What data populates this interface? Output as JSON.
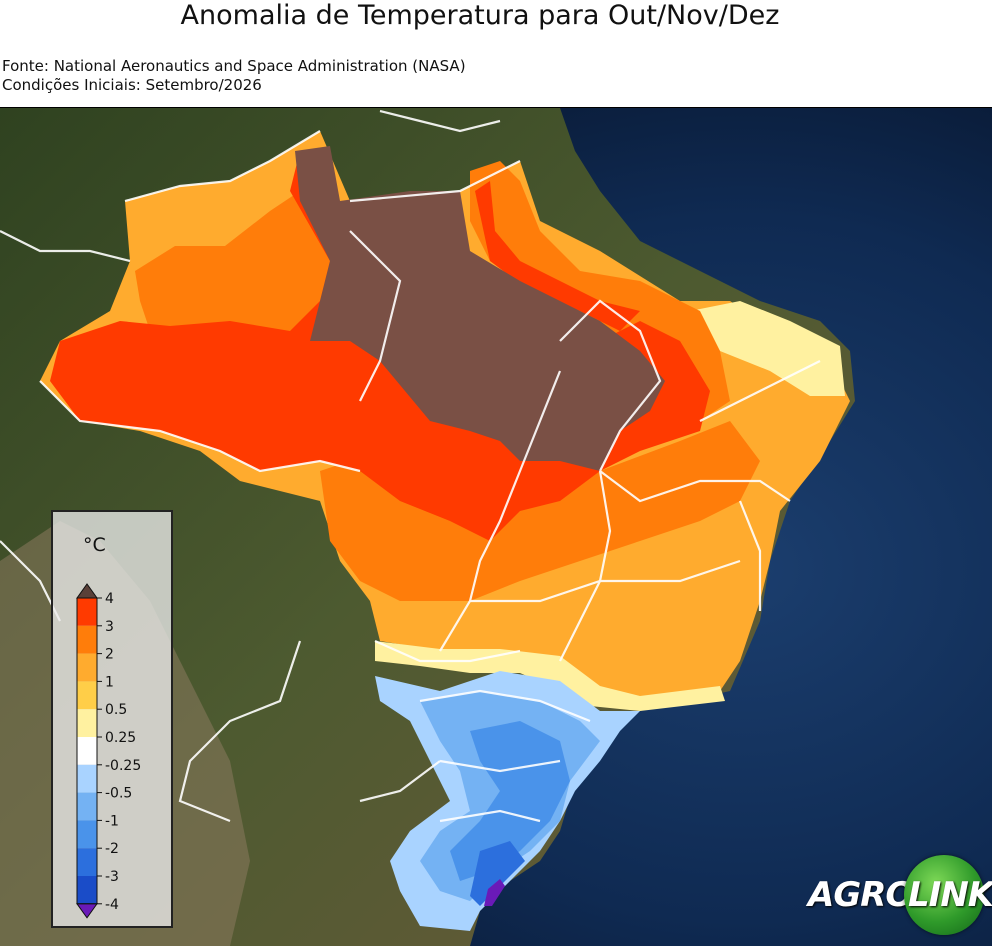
{
  "header": {
    "title": "Anomalia de Temperatura para Out/Nov/Dez",
    "source_line": "Fonte: National Aeronautics and Space Administration (NASA)",
    "conditions_line": "Condições Iniciais: Setembro/2026"
  },
  "legend": {
    "unit": "°C",
    "bins": [
      {
        "label": "4",
        "color": "#7a5045"
      },
      {
        "label": "3",
        "color": "#ff3a00"
      },
      {
        "label": "2",
        "color": "#ff7d0a"
      },
      {
        "label": "1",
        "color": "#ffab2e"
      },
      {
        "label": "0.5",
        "color": "#ffce48"
      },
      {
        "label": "0.25",
        "color": "#fff6a6"
      },
      {
        "label": "-0.25",
        "color": "#ffffff"
      },
      {
        "label": "-0.5",
        "color": "#a9d3ff"
      },
      {
        "label": "-1",
        "color": "#74b2f3"
      },
      {
        "label": "-2",
        "color": "#4a93ea"
      },
      {
        "label": "-3",
        "color": "#2c6fdd"
      },
      {
        "label": "-4",
        "color": "#1a4cc8"
      }
    ],
    "under_color": "#6a1ab8",
    "over_color": "#5a4038"
  },
  "logo": {
    "left_text": "AGRO",
    "right_text": "LINK"
  },
  "colors": {
    "ocean": "#0b1f3c",
    "land": "#4a5a2c",
    "border": "#ffffff"
  }
}
